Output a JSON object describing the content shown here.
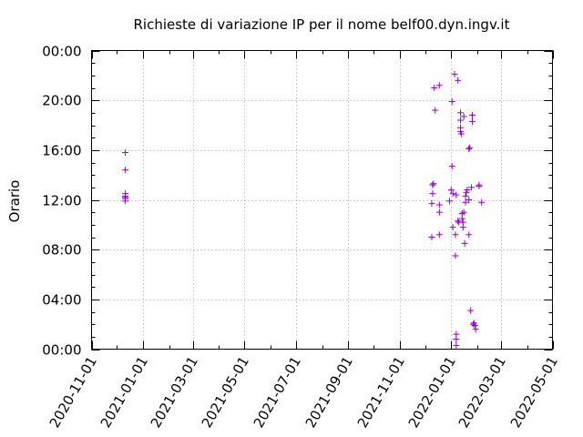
{
  "chart_data": {
    "type": "scatter",
    "title": "Richieste di variazione IP per il nome belf00.dyn.ingv.it",
    "xlabel": "",
    "ylabel": "Orario",
    "xlim": [
      "2020-11-01",
      "2022-05-01"
    ],
    "ylim_hours": [
      0,
      24
    ],
    "x_ticks": [
      "2020-11-01",
      "2021-01-01",
      "2021-03-01",
      "2021-05-01",
      "2021-07-01",
      "2021-09-01",
      "2021-11-01",
      "2022-01-01",
      "2022-03-01",
      "2022-05-01"
    ],
    "y_ticks": [
      "00:00",
      "04:00",
      "08:00",
      "12:00",
      "16:00",
      "20:00",
      "00:00"
    ],
    "y_tick_hours": [
      0,
      4,
      8,
      12,
      16,
      20,
      24
    ],
    "grid": true,
    "marker": "plus",
    "color": "#9400d3",
    "points": [
      {
        "x": "2020-12-11",
        "y": 15.8
      },
      {
        "x": "2020-12-11",
        "y": 14.4
      },
      {
        "x": "2020-12-11",
        "y": 12.5
      },
      {
        "x": "2020-12-11",
        "y": 12.3
      },
      {
        "x": "2020-12-11",
        "y": 12.2
      },
      {
        "x": "2020-12-11",
        "y": 12.1
      },
      {
        "x": "2020-12-11",
        "y": 11.9
      },
      {
        "x": "2021-12-10",
        "y": 13.2
      },
      {
        "x": "2021-12-11",
        "y": 13.3
      },
      {
        "x": "2021-12-10",
        "y": 12.5
      },
      {
        "x": "2021-12-09",
        "y": 11.7
      },
      {
        "x": "2021-12-09",
        "y": 9.0
      },
      {
        "x": "2021-12-12",
        "y": 21.0
      },
      {
        "x": "2021-12-13",
        "y": 19.2
      },
      {
        "x": "2021-12-18",
        "y": 21.2
      },
      {
        "x": "2021-12-18",
        "y": 11.6
      },
      {
        "x": "2021-12-18",
        "y": 11.0
      },
      {
        "x": "2021-12-18",
        "y": 9.2
      },
      {
        "x": "2021-12-30",
        "y": 11.9
      },
      {
        "x": "2022-01-01",
        "y": 12.8
      },
      {
        "x": "2022-01-02",
        "y": 14.7
      },
      {
        "x": "2022-01-03",
        "y": 12.5
      },
      {
        "x": "2022-01-02",
        "y": 19.9
      },
      {
        "x": "2022-01-03",
        "y": 9.8
      },
      {
        "x": "2022-01-05",
        "y": 22.1
      },
      {
        "x": "2022-01-06",
        "y": 7.5
      },
      {
        "x": "2022-01-06",
        "y": 9.2
      },
      {
        "x": "2022-01-07",
        "y": 12.4
      },
      {
        "x": "2022-01-07",
        "y": 1.2
      },
      {
        "x": "2022-01-07",
        "y": 0.8
      },
      {
        "x": "2022-01-07",
        "y": 0.3
      },
      {
        "x": "2022-01-09",
        "y": 21.6
      },
      {
        "x": "2022-01-09",
        "y": 10.3
      },
      {
        "x": "2022-01-10",
        "y": 10.2
      },
      {
        "x": "2022-01-12",
        "y": 19.0
      },
      {
        "x": "2022-01-12",
        "y": 18.4
      },
      {
        "x": "2022-01-12",
        "y": 17.8
      },
      {
        "x": "2022-01-12",
        "y": 17.5
      },
      {
        "x": "2022-01-13",
        "y": 17.3
      },
      {
        "x": "2022-01-14",
        "y": 10.9
      },
      {
        "x": "2022-01-14",
        "y": 10.5
      },
      {
        "x": "2022-01-15",
        "y": 10.2
      },
      {
        "x": "2022-01-15",
        "y": 9.8
      },
      {
        "x": "2022-01-16",
        "y": 18.7
      },
      {
        "x": "2022-01-16",
        "y": 11.0
      },
      {
        "x": "2022-01-17",
        "y": 8.5
      },
      {
        "x": "2022-01-18",
        "y": 11.8
      },
      {
        "x": "2022-01-18",
        "y": 12.3
      },
      {
        "x": "2022-01-19",
        "y": 12.6
      },
      {
        "x": "2022-01-20",
        "y": 12.8
      },
      {
        "x": "2022-01-22",
        "y": 12.0
      },
      {
        "x": "2022-01-22",
        "y": 9.2
      },
      {
        "x": "2022-01-22",
        "y": 16.1
      },
      {
        "x": "2022-01-23",
        "y": 16.2
      },
      {
        "x": "2022-01-24",
        "y": 3.1
      },
      {
        "x": "2022-01-25",
        "y": 13.0
      },
      {
        "x": "2022-01-26",
        "y": 18.8
      },
      {
        "x": "2022-01-26",
        "y": 18.3
      },
      {
        "x": "2022-01-27",
        "y": 2.0
      },
      {
        "x": "2022-01-28",
        "y": 2.1
      },
      {
        "x": "2022-01-29",
        "y": 1.9
      },
      {
        "x": "2022-01-30",
        "y": 1.6
      },
      {
        "x": "2022-02-03",
        "y": 13.1
      },
      {
        "x": "2022-02-03",
        "y": 13.2
      },
      {
        "x": "2022-02-06",
        "y": 11.8
      }
    ]
  }
}
